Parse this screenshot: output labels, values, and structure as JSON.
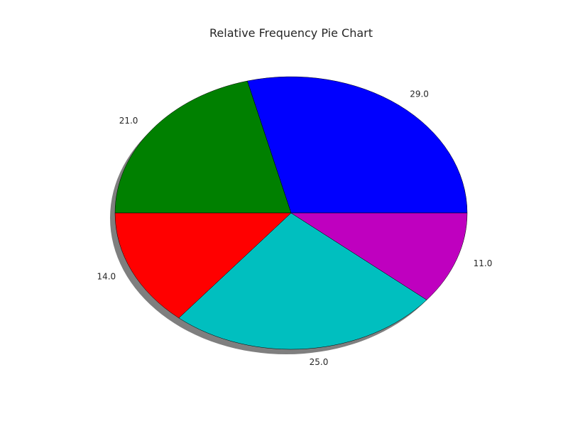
{
  "chart_data": {
    "type": "pie",
    "title": "Relative Frequency Pie Chart",
    "values": [
      29.0,
      21.0,
      14.0,
      25.0,
      11.0
    ],
    "labels": [
      "29.0",
      "21.0",
      "14.0",
      "25.0",
      "11.0"
    ],
    "colors": [
      "#0000ff",
      "#008000",
      "#ff0000",
      "#00bfbf",
      "#bf00bf"
    ],
    "start_angle_deg": 0,
    "direction": "counterclockwise",
    "shadow": true,
    "legend": "none"
  }
}
